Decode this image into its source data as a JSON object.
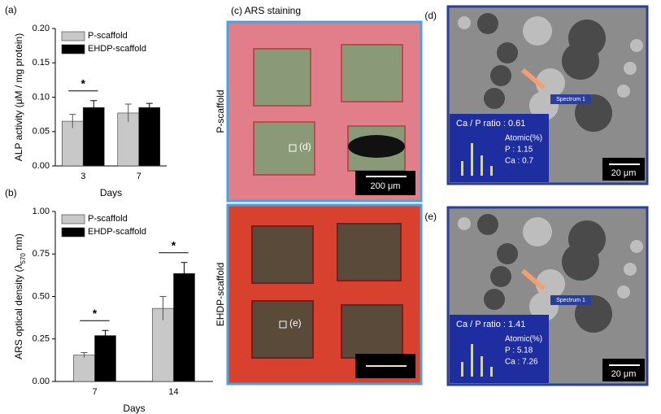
{
  "chart_data": [
    {
      "type": "bar",
      "panel_label": "(a)",
      "y_label": [
        "ALP activity (μM / mg protein)"
      ],
      "x_label": "Days",
      "categories": [
        "3",
        "7"
      ],
      "series": [
        {
          "name": "P-scaffold",
          "color": "#c8c8c8",
          "values": [
            0.065,
            0.077
          ],
          "errors": [
            0.01,
            0.013
          ]
        },
        {
          "name": "EHDP-scaffold",
          "color": "#000000",
          "values": [
            0.085,
            0.085
          ],
          "errors": [
            0.01,
            0.006
          ]
        }
      ],
      "ylim": [
        0,
        0.2
      ],
      "yticks": [
        {
          "value": 0,
          "label": "0.00"
        },
        {
          "value": 0.05,
          "label": "0.05"
        },
        {
          "value": 0.1,
          "label": "0.10"
        },
        {
          "value": 0.15,
          "label": "0.15"
        },
        {
          "value": 0.2,
          "label": "0.20"
        }
      ],
      "annotations": [
        {
          "text": "*",
          "category": "3"
        }
      ]
    },
    {
      "type": "bar",
      "panel_label": "(b)",
      "y_label": [
        "ARS optical density (λ",
        "570",
        " nm)"
      ],
      "x_label": "Days",
      "categories": [
        "7",
        "14"
      ],
      "series": [
        {
          "name": "P-scaffold",
          "color": "#c8c8c8",
          "values": [
            0.155,
            0.43
          ],
          "errors": [
            0.015,
            0.07
          ]
        },
        {
          "name": "EHDP-scaffold",
          "color": "#000000",
          "values": [
            0.27,
            0.635
          ],
          "errors": [
            0.03,
            0.065
          ]
        }
      ],
      "ylim": [
        0,
        1
      ],
      "yticks": [
        {
          "value": 0,
          "label": "0.00"
        },
        {
          "value": 0.25,
          "label": "0.25"
        },
        {
          "value": 0.5,
          "label": "0.50"
        },
        {
          "value": 0.75,
          "label": "0.75"
        },
        {
          "value": 1,
          "label": "1.00"
        }
      ],
      "annotations": [
        {
          "text": "*",
          "category": "7"
        },
        {
          "text": "*",
          "category": "14"
        }
      ]
    }
  ],
  "panels": {
    "c": {
      "label": "(c) ARS staining",
      "rows": [
        "P-scaffold",
        "EHDP-scaffold"
      ],
      "scale_bar": "200 μm",
      "markers": [
        "(d)",
        "(e)"
      ]
    },
    "d": {
      "label": "(d)",
      "spectrum": "Spectrum 1",
      "ratio": "Ca / P ratio : 0.61",
      "atomic": "Atomic(%)",
      "p": "P : 1.15",
      "ca": "Ca : 0.7",
      "scale_bar": "20 μm"
    },
    "e": {
      "label": "(e)",
      "spectrum": "Spectrum 1",
      "ratio": "Ca / P ratio : 1.41",
      "atomic": "Atomic(%)",
      "p": "P : 5.18",
      "ca": "Ca : 7.26",
      "scale_bar": "20 μm"
    }
  }
}
